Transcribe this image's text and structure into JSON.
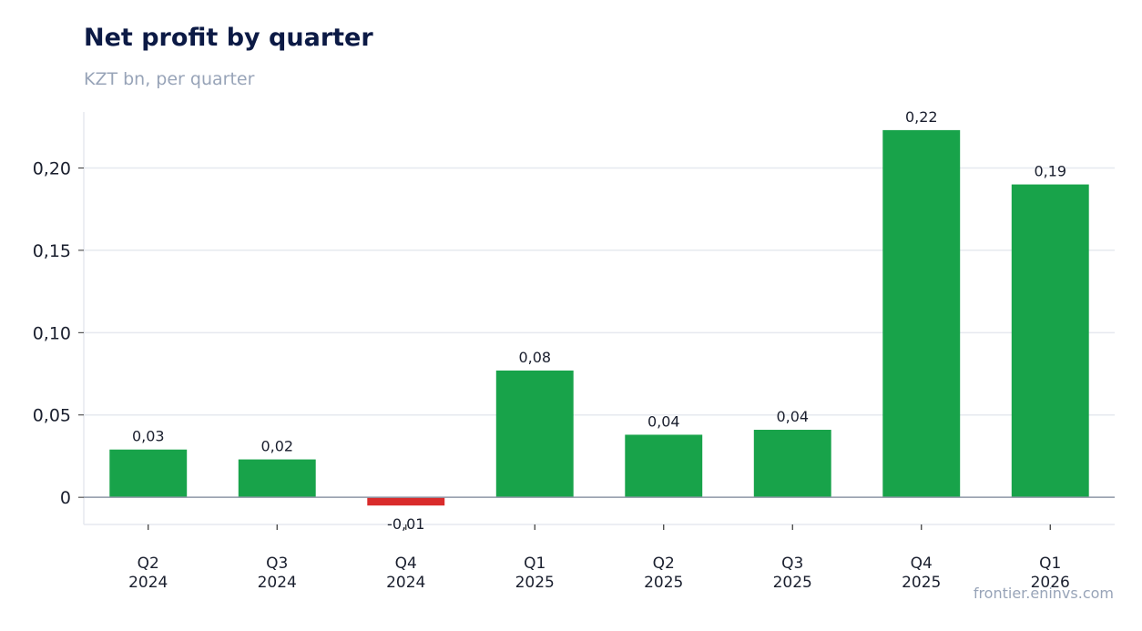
{
  "chart_data": {
    "type": "bar",
    "title": "Net profit by quarter",
    "subtitle": "KZT bn, per quarter",
    "xlabel": "",
    "ylabel": "",
    "categories": [
      [
        "Q2",
        "2024"
      ],
      [
        "Q3",
        "2024"
      ],
      [
        "Q4",
        "2024"
      ],
      [
        "Q1",
        "2025"
      ],
      [
        "Q2",
        "2025"
      ],
      [
        "Q3",
        "2025"
      ],
      [
        "Q4",
        "2025"
      ],
      [
        "Q1",
        "2026"
      ]
    ],
    "values": [
      0.029,
      0.023,
      -0.005,
      0.077,
      0.038,
      0.041,
      0.223,
      0.19
    ],
    "data_labels": [
      "0,03",
      "0,02",
      "-0,01",
      "0,08",
      "0,04",
      "0,04",
      "0,22",
      "0,19"
    ],
    "yticks": [
      0,
      0.05,
      0.1,
      0.15,
      0.2
    ],
    "ytick_labels": [
      "0",
      "0,05",
      "0,10",
      "0,15",
      "0,20"
    ],
    "ylim": [
      -0.0165,
      0.234
    ],
    "grid": true,
    "legend": "none",
    "colors": {
      "positive": "#18a34a",
      "negative": "#d92b2b"
    }
  },
  "source": "frontier.eninvs.com"
}
